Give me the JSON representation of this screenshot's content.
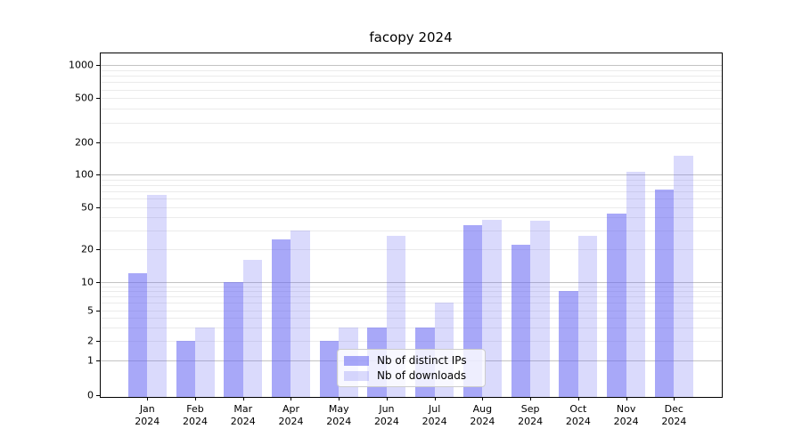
{
  "title": "facopy 2024",
  "chart_data": {
    "type": "bar",
    "title": "facopy 2024",
    "categories": [
      "Jan 2024",
      "Feb 2024",
      "Mar 2024",
      "Apr 2024",
      "May 2024",
      "Jun 2024",
      "Jul 2024",
      "Aug 2024",
      "Sep 2024",
      "Oct 2024",
      "Nov 2024",
      "Dec 2024"
    ],
    "series": [
      {
        "name": "Nb of distinct IPs",
        "color": "rgba(100,100,242,0.56)",
        "values": [
          12,
          2,
          10,
          25,
          2,
          3,
          3,
          34,
          22,
          8,
          43,
          72
        ]
      },
      {
        "name": "Nb of downloads",
        "color": "rgba(100,100,242,0.24)",
        "values": [
          65,
          3,
          16,
          30,
          3,
          27,
          6,
          38,
          37,
          27,
          105,
          150
        ]
      }
    ],
    "xlabel": "",
    "ylabel": "",
    "yscale": "symlog",
    "yticks": [
      0,
      1,
      2,
      5,
      10,
      20,
      50,
      100,
      200,
      500,
      1000
    ],
    "ylim": [
      0,
      1300
    ],
    "grid": true,
    "legend_position": "lower center",
    "colors": {
      "major_grid": "#c3c3c3",
      "minor_grid": "#ebebeb",
      "axis": "#000000",
      "legend_border": "#cccccc"
    }
  }
}
